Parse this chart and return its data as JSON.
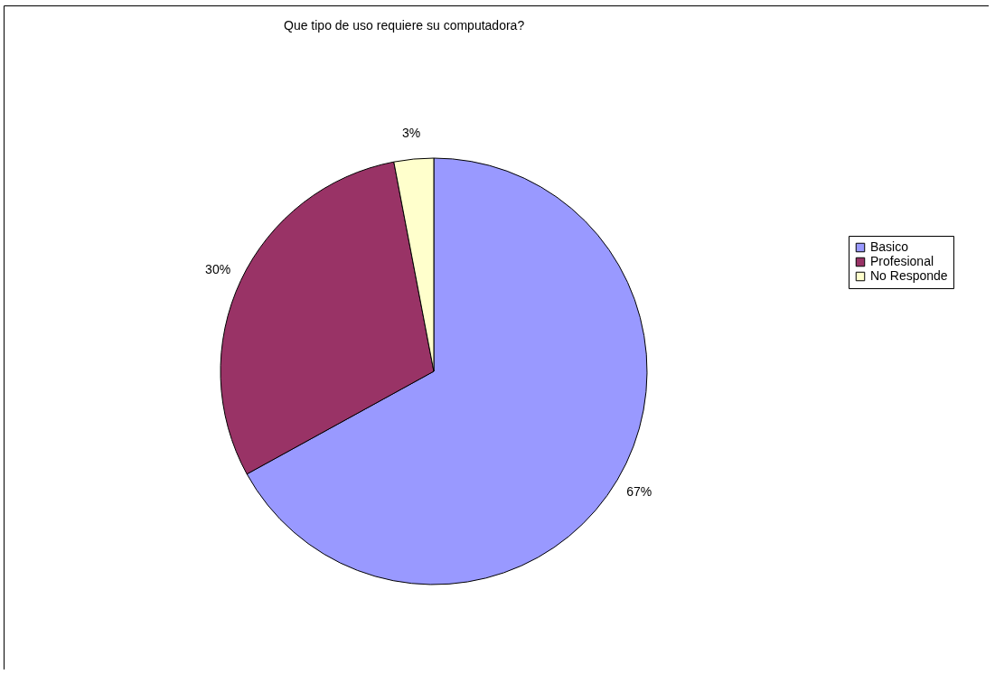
{
  "chart_data": {
    "type": "pie",
    "title": "Que tipo de uso requiere su computadora?",
    "categories": [
      "Basico",
      "Profesional",
      "No Responde"
    ],
    "values": [
      67,
      30,
      3
    ],
    "colors": [
      "#9999ff",
      "#993366",
      "#ffffcc"
    ],
    "value_labels": [
      "67%",
      "30%",
      "3%"
    ],
    "legend": "right"
  }
}
